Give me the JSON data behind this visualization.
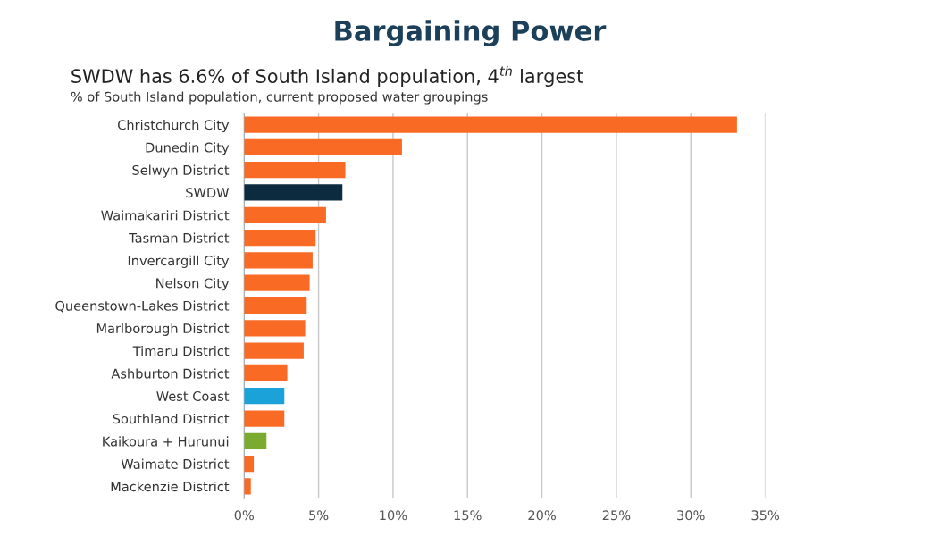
{
  "chart_data": {
    "type": "bar",
    "orientation": "horizontal",
    "title": "Bargaining Power",
    "subtitle": "SWDW has 6.6% of South Island population, 4$^{th}$ largest",
    "annotations": [
      "% of South Island population, current proposed water groupings"
    ],
    "categories": [
      "Christchurch City",
      "Dunedin City",
      "Selwyn District",
      "SWDW",
      "Waimakariri District",
      "Tasman District",
      "Invercargill City",
      "Nelson City",
      "Queenstown-Lakes District",
      "Marlborough District",
      "Timaru District",
      "Ashburton District",
      "West Coast",
      "Southland District",
      "Kaikoura + Hurunui",
      "Waimate District",
      "Mackenzie District"
    ],
    "values": [
      33.1,
      10.6,
      6.8,
      6.6,
      5.5,
      4.8,
      4.6,
      4.4,
      4.2,
      4.1,
      4.0,
      2.9,
      2.7,
      2.7,
      1.5,
      0.65,
      0.45
    ],
    "colors": [
      "#f96a24",
      "#f96a24",
      "#f96a24",
      "#0d2b3e",
      "#f96a24",
      "#f96a24",
      "#f96a24",
      "#f96a24",
      "#f96a24",
      "#f96a24",
      "#f96a24",
      "#f96a24",
      "#1ba3d9",
      "#f96a24",
      "#7aab2e",
      "#f96a24",
      "#f96a24"
    ],
    "xlim": [
      0,
      35
    ],
    "xticks": [
      {
        "value": 0,
        "label": "0%"
      },
      {
        "value": 5,
        "label": "5%"
      },
      {
        "value": 10,
        "label": "10%"
      },
      {
        "value": 15,
        "label": "15%"
      },
      {
        "value": 20,
        "label": "20%"
      },
      {
        "value": 25,
        "label": "25%"
      },
      {
        "value": 30,
        "label": "30%"
      },
      {
        "value": 35,
        "label": "35%"
      }
    ],
    "grid": "x",
    "legend": false
  }
}
